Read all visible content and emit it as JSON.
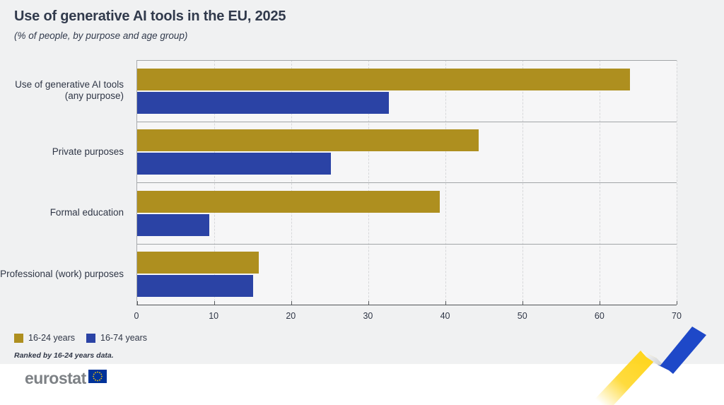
{
  "header": {
    "title": "Use of generative AI tools in the EU, 2025",
    "subtitle": "(% of people, by purpose and age group)"
  },
  "chart_data": {
    "type": "bar",
    "orientation": "horizontal",
    "title": "Use of generative AI tools in the EU, 2025",
    "subtitle": "(% of people, by purpose and age group)",
    "categories": [
      "Use of generative AI tools (any purpose)",
      "Private purposes",
      "Formal education",
      "Professional (work) purposes"
    ],
    "category_label_lines": [
      [
        "Use of generative AI tools",
        "(any purpose)"
      ],
      [
        "Private purposes"
      ],
      [
        "Formal education"
      ],
      [
        "Professional (work) purposes"
      ]
    ],
    "series": [
      {
        "name": "16-24 years",
        "color": "#AE8F1F",
        "values": [
          63.9,
          44.3,
          39.3,
          15.8
        ]
      },
      {
        "name": "16-74 years",
        "color": "#2B43A5",
        "values": [
          32.7,
          25.1,
          9.4,
          15.0
        ]
      }
    ],
    "xlim": [
      0,
      70
    ],
    "xticks": [
      0,
      10,
      20,
      30,
      40,
      50,
      60,
      70
    ],
    "grid": "vertical-dashed",
    "legend_position": "bottom-left",
    "note": "Ranked by 16-24 years data."
  },
  "footer": {
    "logo_text": "eurostat"
  },
  "colors": {
    "background": "#f0f1f2",
    "plot_background": "#f6f6f7",
    "gold": "#AE8F1F",
    "blue": "#2B43A5",
    "ribbon_yellow": "#FFD51C",
    "ribbon_blue": "#1E48C8",
    "flag_blue": "#003399",
    "flag_stars": "#FFCC00",
    "text": "#313a4c"
  }
}
